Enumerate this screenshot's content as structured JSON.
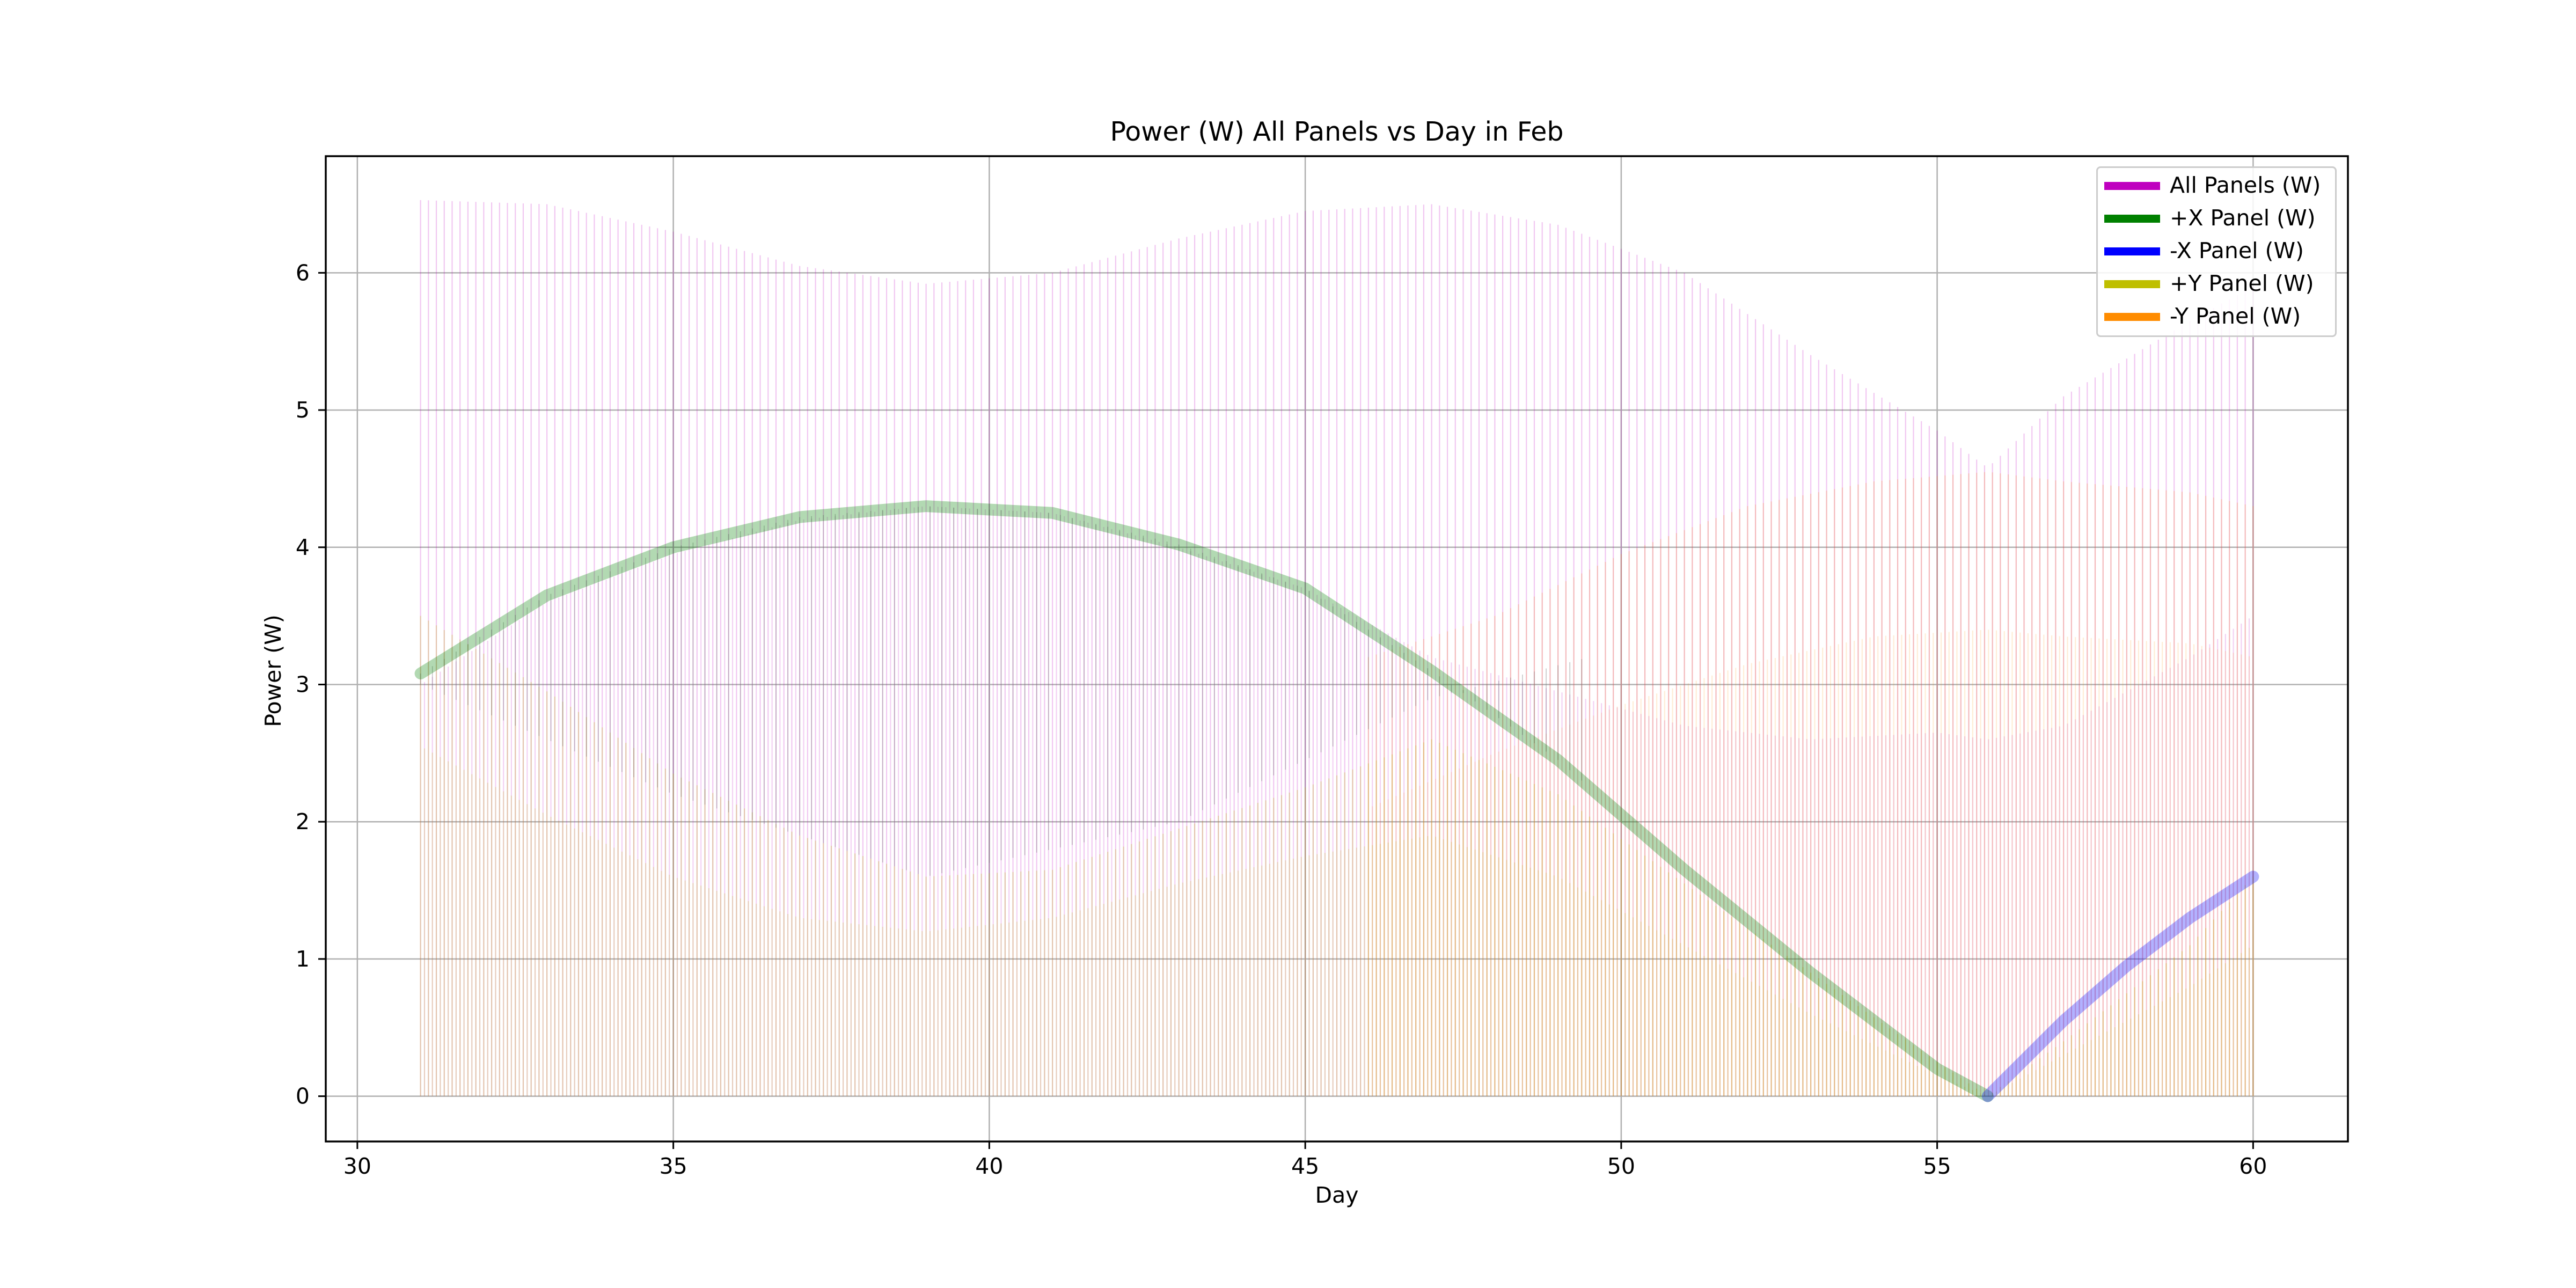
{
  "chart_data": {
    "type": "line",
    "title": "Power (W) All Panels vs Day in Feb",
    "xlabel": "Day",
    "ylabel": "Power (W)",
    "xlim": [
      29.5,
      61.5
    ],
    "ylim": [
      -0.33,
      6.85
    ],
    "xticks": [
      30,
      35,
      40,
      45,
      50,
      55,
      60
    ],
    "yticks": [
      0,
      1,
      2,
      3,
      4,
      5,
      6
    ],
    "grid": true,
    "legend_position": "top-right",
    "x_range_data": [
      31,
      60
    ],
    "series": [
      {
        "name": "All Panels (W)",
        "color": "#bf00bf",
        "upper_envelope": {
          "x": [
            31,
            33,
            35,
            37,
            39,
            41,
            43,
            45,
            47,
            49,
            51,
            53,
            55,
            55.8,
            57,
            59,
            60
          ],
          "y": [
            6.53,
            6.5,
            6.3,
            6.05,
            5.92,
            6.0,
            6.25,
            6.45,
            6.5,
            6.35,
            6.0,
            5.4,
            4.85,
            4.58,
            5.1,
            5.65,
            5.9
          ]
        },
        "lower_envelope": {
          "x": [
            31,
            33,
            35,
            37,
            39,
            41,
            43,
            45,
            47,
            49,
            51,
            53,
            55,
            55.8,
            57,
            59,
            60
          ],
          "y": [
            3.0,
            3.6,
            3.95,
            4.2,
            4.3,
            4.25,
            4.0,
            3.7,
            3.2,
            2.95,
            2.7,
            2.6,
            2.65,
            2.6,
            2.7,
            3.2,
            3.5
          ]
        }
      },
      {
        "name": "+X Panel (W)",
        "color": "#008000",
        "x": [
          31,
          33,
          35,
          37,
          39,
          41,
          43,
          45,
          47,
          49,
          51,
          53,
          55,
          55.8
        ],
        "y": [
          3.08,
          3.65,
          4.0,
          4.22,
          4.3,
          4.25,
          4.02,
          3.7,
          3.1,
          2.45,
          1.65,
          0.9,
          0.2,
          0.0
        ]
      },
      {
        "name": "-X Panel (W)",
        "color": "#0000ff",
        "x": [
          55.8,
          57,
          58,
          59,
          60
        ],
        "y": [
          0.0,
          0.55,
          0.95,
          1.3,
          1.6
        ]
      },
      {
        "name": "+Y Panel (W)",
        "color": "#bfbf00",
        "upper_envelope": {
          "x": [
            31,
            33,
            35,
            37,
            39,
            41,
            43,
            45,
            47,
            49,
            51,
            53,
            55,
            55.8,
            57,
            59,
            60
          ],
          "y": [
            3.5,
            2.95,
            2.35,
            1.9,
            1.6,
            1.65,
            1.95,
            2.25,
            2.6,
            2.2,
            1.55,
            0.9,
            0.25,
            0.0,
            0.4,
            1.1,
            1.6
          ]
        },
        "lower_envelope": {
          "x": [
            31,
            33,
            35,
            37,
            39,
            41,
            43,
            45,
            47,
            49,
            51,
            53,
            55,
            55.8,
            57,
            59,
            60
          ],
          "y": [
            2.55,
            2.05,
            1.6,
            1.3,
            1.2,
            1.3,
            1.55,
            1.75,
            1.9,
            1.6,
            1.1,
            0.6,
            0.15,
            0.0,
            0.3,
            0.8,
            1.1
          ]
        }
      },
      {
        "name": "-Y Panel (W)",
        "color": "#ff8c00",
        "upper_envelope": {
          "x": [
            46,
            48,
            50,
            52,
            54,
            55.8,
            57,
            59,
            60
          ],
          "y": [
            3.2,
            3.5,
            3.95,
            4.3,
            4.48,
            4.55,
            4.48,
            4.4,
            4.3
          ]
        },
        "lower_envelope": {
          "x": [
            46,
            48,
            50,
            52,
            54,
            55.8,
            57,
            59,
            60
          ],
          "y": [
            2.1,
            2.5,
            2.85,
            3.15,
            3.35,
            3.4,
            3.35,
            3.3,
            3.2
          ]
        }
      }
    ]
  }
}
